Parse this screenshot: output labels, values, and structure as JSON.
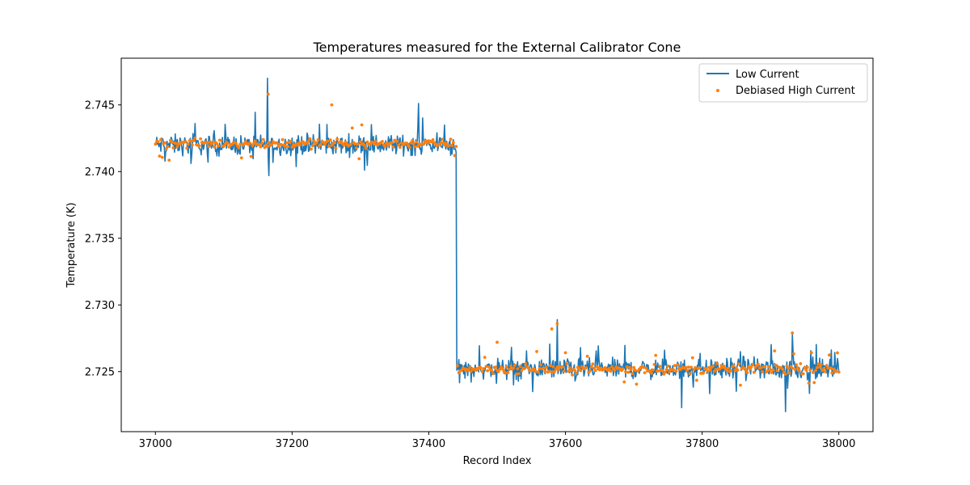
{
  "chart_data": {
    "type": "line",
    "title": "Temperatures measured for the External Calibrator Cone",
    "xlabel": "Record Index",
    "ylabel": "Temperature (K)",
    "xlim": [
      36950,
      38050
    ],
    "ylim": [
      2.7205,
      2.7485
    ],
    "xticks": [
      37000,
      37200,
      37400,
      37600,
      37800,
      38000
    ],
    "xtick_labels": [
      "37000",
      "37200",
      "37400",
      "37600",
      "37800",
      "38000"
    ],
    "yticks": [
      2.725,
      2.73,
      2.735,
      2.74,
      2.745
    ],
    "ytick_labels": [
      "2.725",
      "2.730",
      "2.735",
      "2.740",
      "2.745"
    ],
    "grid": false,
    "legend_position": "top-right",
    "step_index": 37440,
    "series": [
      {
        "name": "Low Current",
        "kind": "line",
        "color": "#1f77b4",
        "x_start": 37000,
        "x_end": 38000,
        "level_before": 2.742,
        "level_after": 2.7252,
        "noise_amplitude": 0.0011,
        "spikes": [
          {
            "x": 37164,
            "y": 2.747
          },
          {
            "x": 37166,
            "y": 2.7397
          },
          {
            "x": 37385,
            "y": 2.7451
          },
          {
            "x": 37588,
            "y": 2.7289
          },
          {
            "x": 37770,
            "y": 2.7223
          },
          {
            "x": 37922,
            "y": 2.722
          },
          {
            "x": 37932,
            "y": 2.7278
          }
        ]
      },
      {
        "name": "Debiased High Current",
        "kind": "scatter",
        "color": "#ff7f0e",
        "x_start": 37000,
        "x_end": 38000,
        "level_before": 2.7421,
        "level_after": 2.7252,
        "noise_amplitude": 0.0005,
        "outliers": [
          {
            "x": 37165,
            "y": 2.7458
          },
          {
            "x": 37258,
            "y": 2.745
          },
          {
            "x": 37302,
            "y": 2.7435
          },
          {
            "x": 37580,
            "y": 2.7282
          },
          {
            "x": 37588,
            "y": 2.7286
          },
          {
            "x": 37932,
            "y": 2.7279
          },
          {
            "x": 37500,
            "y": 2.7272
          }
        ]
      }
    ]
  }
}
